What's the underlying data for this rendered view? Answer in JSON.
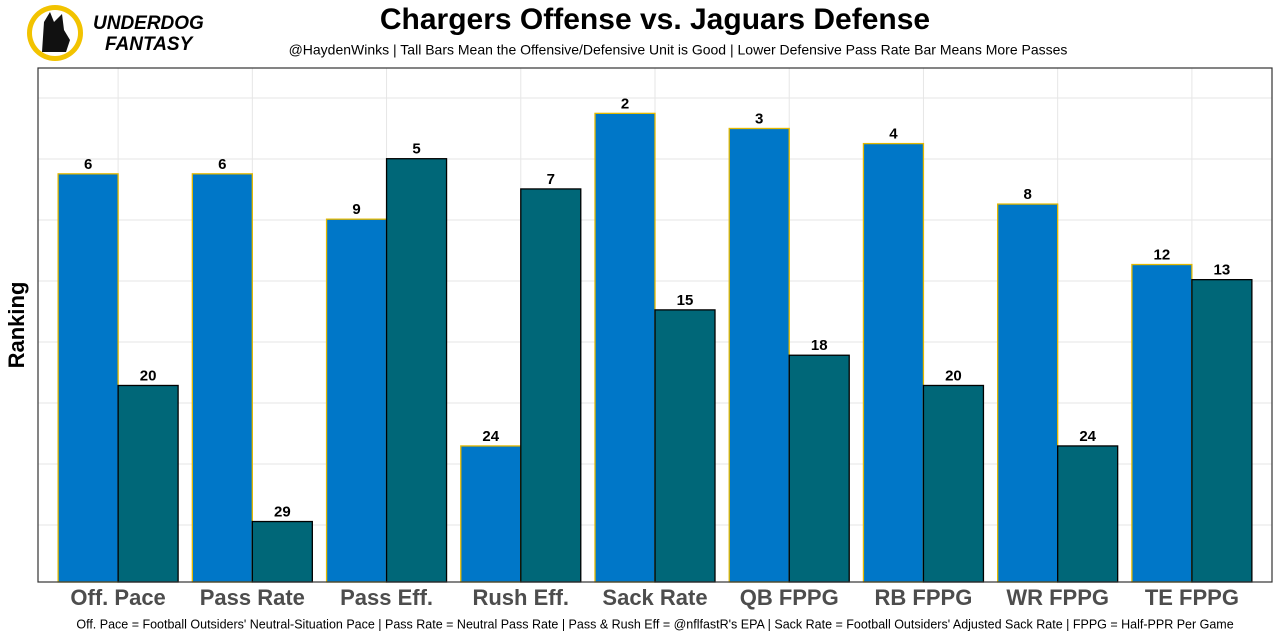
{
  "logo": {
    "line1": "UNDERDOG",
    "line2": "FANTASY"
  },
  "chart_data": {
    "type": "bar",
    "title": "Chargers Offense vs. Jaguars Defense",
    "subtitle": "@HaydenWinks | Tall Bars Mean the Offensive/Defensive Unit is Good | Lower Defensive Pass Rate Bar Means More Passes",
    "caption": "Off. Pace = Football Outsiders' Neutral-Situation Pace | Pass Rate = Neutral Pass Rate | Pass & Rush Eff = @nflfastR's EPA | Sack Rate = Football Outsiders' Adjusted Sack Rate | FPPG = Half-PPR Per Game",
    "y_label": "Ranking",
    "categories": [
      "Off. Pace",
      "Pass Rate",
      "Pass Eff.",
      "Rush Eff.",
      "Sack Rate",
      "QB FPPG",
      "RB FPPG",
      "WR FPPG",
      "TE FPPG"
    ],
    "series": [
      {
        "color": "#0077c8",
        "edge": "#e3b800",
        "values": [
          6,
          6,
          9,
          24,
          2,
          3,
          4,
          8,
          12
        ]
      },
      {
        "color": "#006778",
        "edge": "#000000",
        "values": [
          20,
          29,
          5,
          7,
          15,
          18,
          20,
          24,
          13
        ]
      }
    ],
    "ylim": [
      33,
      -1
    ],
    "grid": true
  }
}
